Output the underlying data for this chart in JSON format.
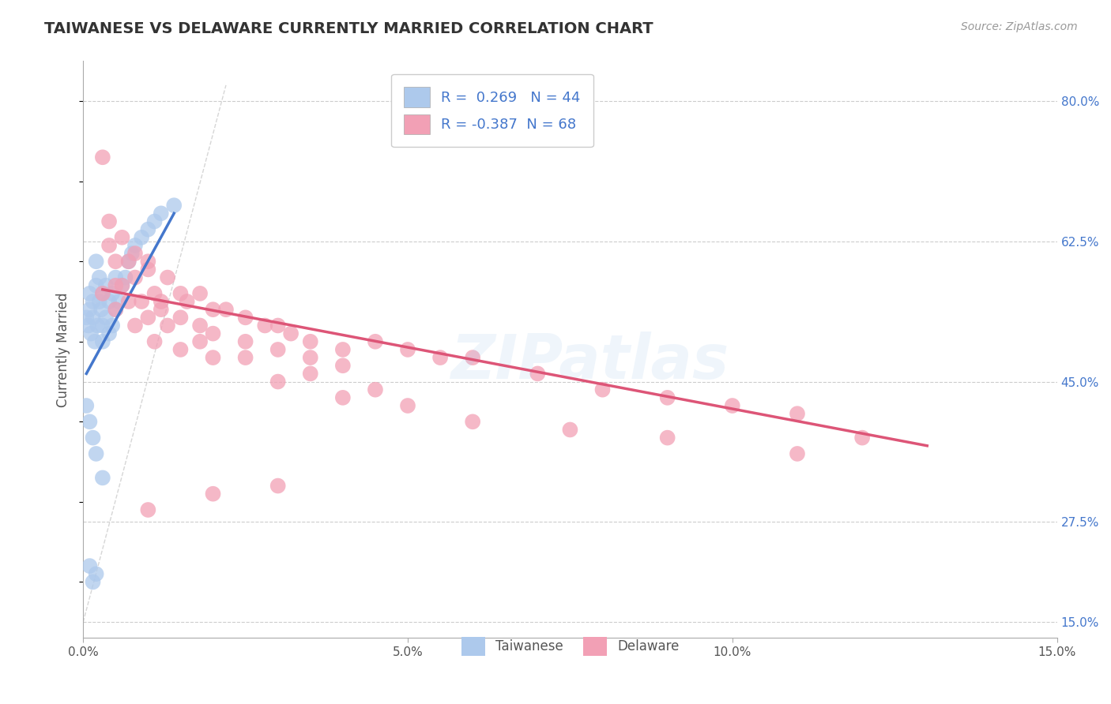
{
  "title": "TAIWANESE VS DELAWARE CURRENTLY MARRIED CORRELATION CHART",
  "source": "Source: ZipAtlas.com",
  "ylabel": "Currently Married",
  "x_ticks": [
    0.0,
    5.0,
    10.0,
    15.0
  ],
  "x_tick_labels": [
    "0.0%",
    "5.0%",
    "10.0%",
    "15.0%"
  ],
  "y_ticks_right": [
    15.0,
    27.5,
    45.0,
    62.5,
    80.0
  ],
  "y_tick_labels_right": [
    "15.0%",
    "27.5%",
    "45.0%",
    "62.5%",
    "80.0%"
  ],
  "xlim": [
    0.0,
    15.0
  ],
  "ylim": [
    13.0,
    85.0
  ],
  "background_color": "#ffffff",
  "grid_color": "#cccccc",
  "title_color": "#333333",
  "title_fontsize": 14,
  "source_color": "#999999",
  "blue_color": "#adc9ec",
  "pink_color": "#f2a0b5",
  "blue_line_color": "#4477cc",
  "pink_line_color": "#dd5577",
  "legend_R1": "0.269",
  "legend_N1": "44",
  "legend_R2": "-0.387",
  "legend_N2": "68",
  "legend_label1": "Taiwanese",
  "legend_label2": "Delaware",
  "watermark": "ZIPatlas",
  "blue_scatter_x": [
    0.05,
    0.08,
    0.1,
    0.1,
    0.12,
    0.15,
    0.15,
    0.18,
    0.2,
    0.2,
    0.22,
    0.25,
    0.25,
    0.28,
    0.3,
    0.3,
    0.3,
    0.35,
    0.35,
    0.4,
    0.4,
    0.45,
    0.45,
    0.5,
    0.5,
    0.55,
    0.6,
    0.65,
    0.7,
    0.75,
    0.8,
    0.9,
    1.0,
    1.1,
    1.2,
    1.4,
    0.05,
    0.1,
    0.15,
    0.2,
    0.3,
    0.1,
    0.2,
    0.15
  ],
  "blue_scatter_y": [
    53.0,
    52.0,
    54.0,
    56.0,
    51.0,
    53.0,
    55.0,
    50.0,
    57.0,
    60.0,
    52.0,
    55.0,
    58.0,
    54.0,
    50.0,
    52.0,
    56.0,
    53.0,
    57.0,
    51.0,
    55.0,
    52.0,
    56.0,
    54.0,
    58.0,
    55.0,
    57.0,
    58.0,
    60.0,
    61.0,
    62.0,
    63.0,
    64.0,
    65.0,
    66.0,
    67.0,
    42.0,
    40.0,
    38.0,
    36.0,
    33.0,
    22.0,
    21.0,
    20.0
  ],
  "pink_scatter_x": [
    0.3,
    0.4,
    0.5,
    0.6,
    0.7,
    0.8,
    0.9,
    1.0,
    1.1,
    1.2,
    1.3,
    1.5,
    1.6,
    1.8,
    2.0,
    2.2,
    2.5,
    2.8,
    3.0,
    3.2,
    3.5,
    4.0,
    4.5,
    5.0,
    5.5,
    6.0,
    7.0,
    8.0,
    9.0,
    10.0,
    11.0,
    12.0,
    0.4,
    0.6,
    0.8,
    1.0,
    1.2,
    1.5,
    1.8,
    2.0,
    2.5,
    3.0,
    3.5,
    4.0,
    0.5,
    0.7,
    1.0,
    1.3,
    1.8,
    2.5,
    3.5,
    4.5,
    0.3,
    0.5,
    0.8,
    1.1,
    1.5,
    2.0,
    3.0,
    4.0,
    5.0,
    6.0,
    7.5,
    9.0,
    11.0,
    1.0,
    2.0,
    3.0
  ],
  "pink_scatter_y": [
    73.0,
    62.0,
    60.0,
    57.0,
    60.0,
    58.0,
    55.0,
    60.0,
    56.0,
    54.0,
    58.0,
    56.0,
    55.0,
    56.0,
    54.0,
    54.0,
    53.0,
    52.0,
    52.0,
    51.0,
    50.0,
    49.0,
    50.0,
    49.0,
    48.0,
    48.0,
    46.0,
    44.0,
    43.0,
    42.0,
    41.0,
    38.0,
    65.0,
    63.0,
    61.0,
    59.0,
    55.0,
    53.0,
    52.0,
    51.0,
    50.0,
    49.0,
    48.0,
    47.0,
    57.0,
    55.0,
    53.0,
    52.0,
    50.0,
    48.0,
    46.0,
    44.0,
    56.0,
    54.0,
    52.0,
    50.0,
    49.0,
    48.0,
    45.0,
    43.0,
    42.0,
    40.0,
    39.0,
    38.0,
    36.0,
    29.0,
    31.0,
    32.0
  ],
  "blue_line_x": [
    0.05,
    1.4
  ],
  "blue_line_y": [
    46.0,
    66.0
  ],
  "pink_line_x": [
    0.3,
    13.0
  ],
  "pink_line_y": [
    56.5,
    37.0
  ]
}
